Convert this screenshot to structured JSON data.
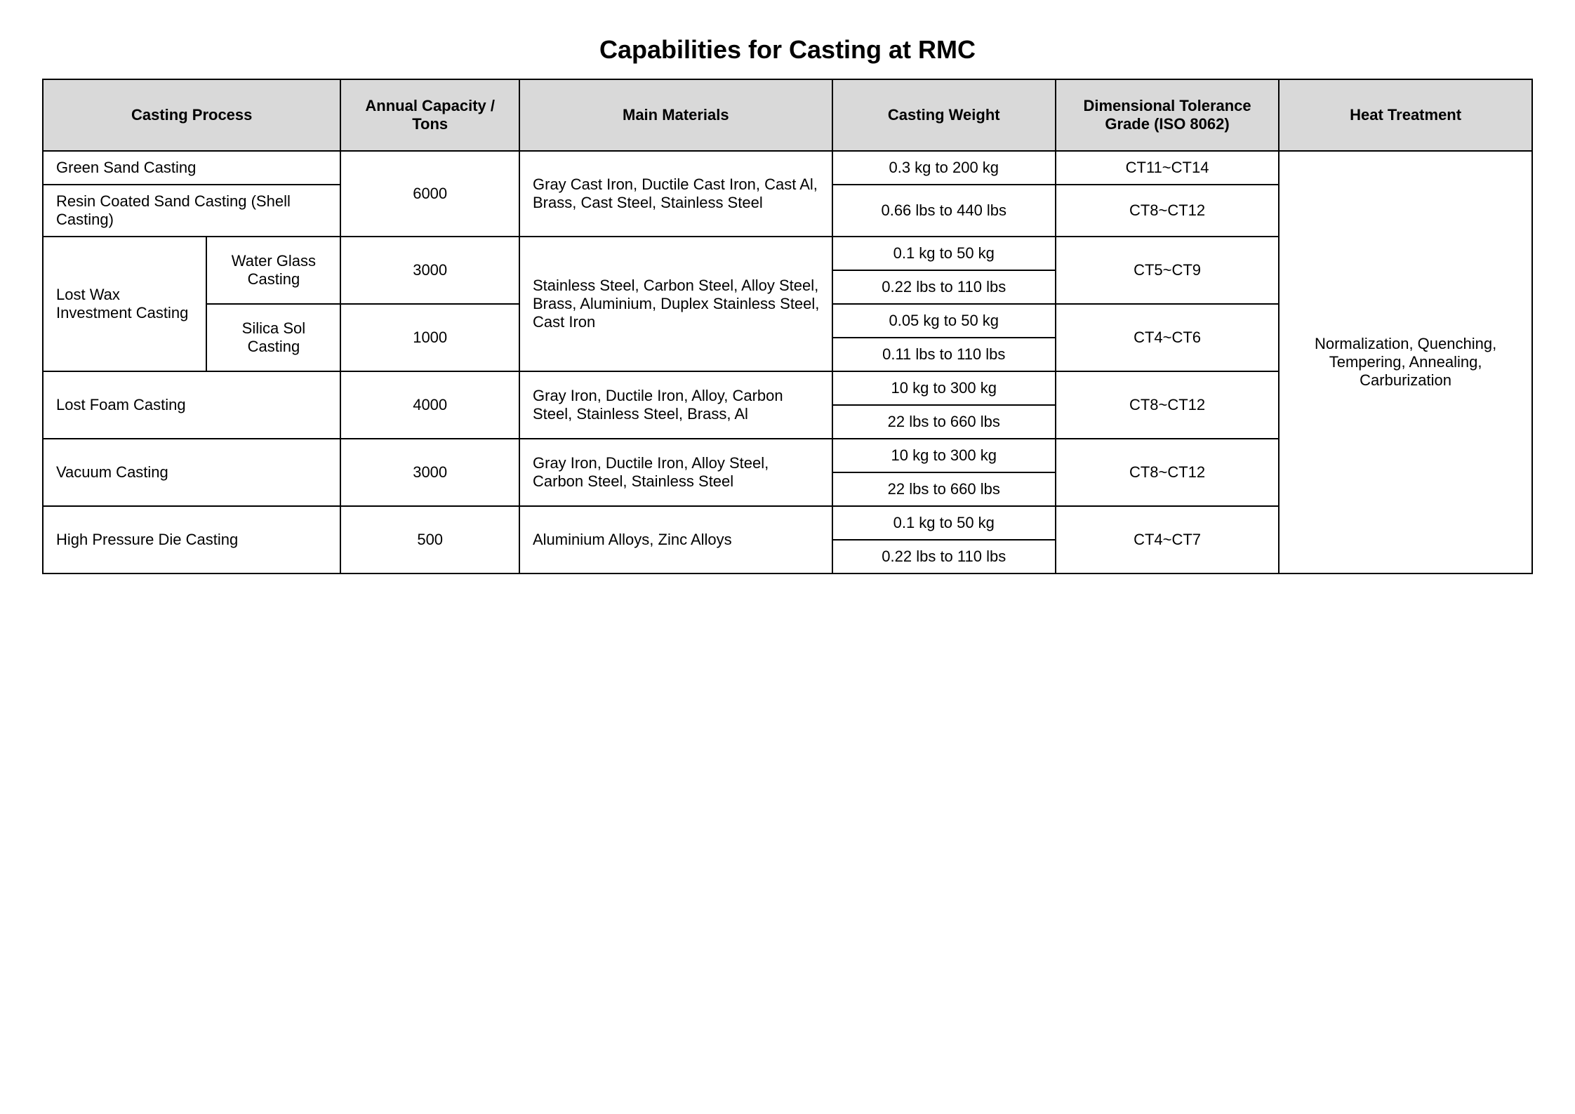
{
  "title": "Capabilities for Casting at RMC",
  "headers": {
    "process": "Casting Process",
    "capacity": "Annual Capacity / Tons",
    "materials": "Main Materials",
    "weight": "Casting Weight",
    "tolerance": "Dimensional Tolerance Grade (ISO 8062)",
    "heat": "Heat Treatment"
  },
  "rows": {
    "green_sand": "Green Sand Casting",
    "resin_sand": "Resin Coated Sand Casting (Shell Casting)",
    "cap_6000": "6000",
    "mat_1": "Gray Cast Iron, Ductile Cast Iron, Cast Al, Brass, Cast Steel, Stainless Steel",
    "wt_green": "0.3 kg to 200 kg",
    "tol_green": "CT11~CT14",
    "wt_resin": "0.66 lbs to 440 lbs",
    "tol_resin": "CT8~CT12",
    "lost_wax": "Lost Wax Investment Casting",
    "water_glass": "Water Glass Casting",
    "cap_3000a": "3000",
    "mat_2": "Stainless Steel, Carbon Steel, Alloy Steel, Brass, Aluminium, Duplex Stainless Steel, Cast Iron",
    "wt_wg_kg": "0.1 kg to 50 kg",
    "tol_wg": "CT5~CT9",
    "wt_wg_lbs": "0.22 lbs to 110 lbs",
    "silica_sol": "Silica Sol Casting",
    "cap_1000": "1000",
    "wt_ss_kg": "0.05 kg to 50 kg",
    "tol_ss": "CT4~CT6",
    "wt_ss_lbs": "0.11 lbs to 110 lbs",
    "lost_foam": "Lost Foam Casting",
    "cap_4000": "4000",
    "mat_3": "Gray Iron, Ductile Iron, Alloy, Carbon Steel, Stainless Steel, Brass, Al",
    "wt_lf_kg": "10 kg to 300 kg",
    "tol_lf": "CT8~CT12",
    "wt_lf_lbs": "22 lbs to 660 lbs",
    "vacuum": "Vacuum Casting",
    "cap_3000b": "3000",
    "mat_4": "Gray Iron, Ductile Iron, Alloy Steel, Carbon Steel, Stainless Steel",
    "wt_vc_kg": "10 kg to 300 kg",
    "tol_vc": "CT8~CT12",
    "wt_vc_lbs": "22 lbs to 660 lbs",
    "hpdc": "High Pressure Die Casting",
    "cap_500": "500",
    "mat_5": "Aluminium Alloys, Zinc Alloys",
    "wt_hp_kg": "0.1 kg to 50 kg",
    "tol_hp": "CT4~CT7",
    "wt_hp_lbs": "0.22 lbs to 110 lbs",
    "heat_val": "Normalization, Quenching, Tempering, Annealing, Carburization"
  },
  "style": {
    "type": "table",
    "header_bg": "#d9d9d9",
    "border_color": "#000000",
    "background_color": "#ffffff",
    "text_color": "#000000",
    "title_fontsize": 36,
    "cell_fontsize": 22,
    "border_width": 2,
    "columns": 7,
    "column_widths_pct": [
      11,
      9,
      12,
      21,
      15,
      15,
      17
    ]
  }
}
